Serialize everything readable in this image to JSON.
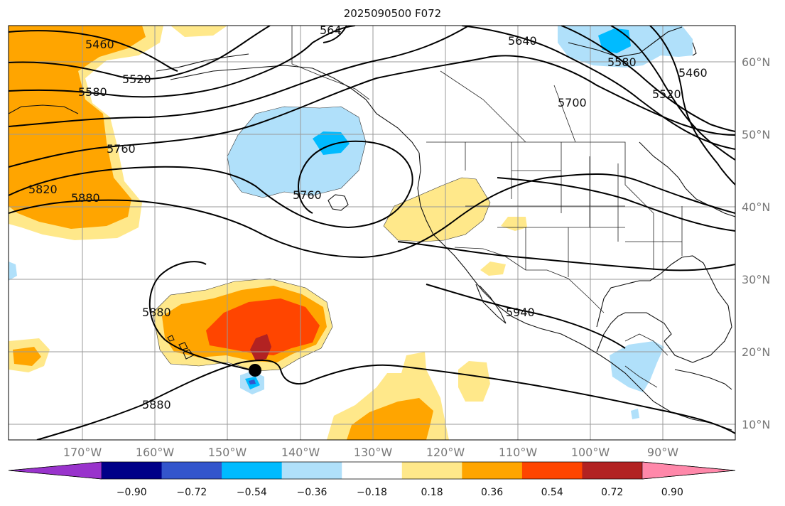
{
  "title": "2025090500 F072",
  "lat_labels": [
    "60°N",
    "50°N",
    "40°N",
    "30°N",
    "20°N",
    "10°N"
  ],
  "lon_labels": [
    "170°W",
    "160°W",
    "150°W",
    "140°W",
    "130°W",
    "120°W",
    "110°W",
    "100°W",
    "90°W"
  ],
  "contour_labels": [
    "5460",
    "5520",
    "5580",
    "5760",
    "5820",
    "5880",
    "5640",
    "5580",
    "5700",
    "5520",
    "5460",
    "5760",
    "5880",
    "5880",
    "5940",
    "564"
  ],
  "colorbar": {
    "tick_labels": [
      "−0.90",
      "−0.72",
      "−0.54",
      "−0.36",
      "−0.18",
      "0.18",
      "0.36",
      "0.54",
      "0.72",
      "0.90"
    ],
    "colors": [
      "#9933cc",
      "#000088",
      "#3355cc",
      "#00bbff",
      "#b0e0fa",
      "#ffffff",
      "#ffe88a",
      "#ffa500",
      "#ff4500",
      "#b22222",
      "#ff88aa"
    ]
  },
  "shading_colors": {
    "light_yellow": "#ffe88a",
    "orange": "#ffa500",
    "red_orange": "#ff4500",
    "dark_red": "#b22222",
    "light_blue": "#b0e0fa",
    "deep_sky_blue": "#00bbff",
    "blue": "#3355cc"
  },
  "marker": {
    "name": "storm-center-marker",
    "color": "#000000"
  }
}
